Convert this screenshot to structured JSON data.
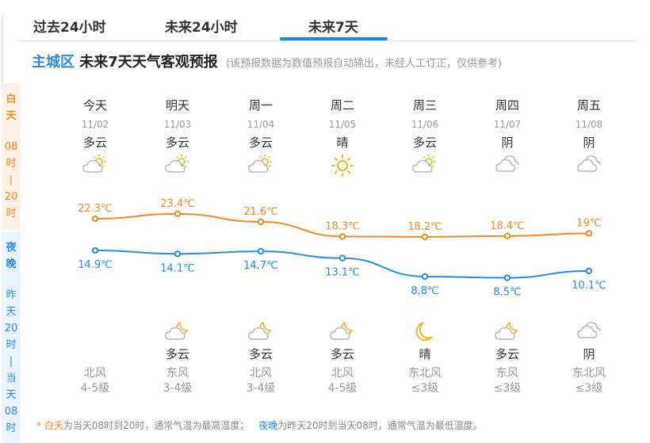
{
  "tabs": [
    {
      "label": "过去24小时",
      "active": false
    },
    {
      "label": "未来24小时",
      "active": false
    },
    {
      "label": "未来7天",
      "active": true
    }
  ],
  "header": {
    "region": "主城区",
    "title": "未来7天天气客观预报",
    "note": "(该预报数据为数值预报自动输出，未经人工订正，仅供参考)"
  },
  "side": {
    "day": {
      "label1": "白",
      "label2": "天",
      "t1": "08",
      "t2": "时",
      "sep": "|",
      "t3": "20",
      "t4": "时"
    },
    "night": {
      "label1": "夜",
      "label2": "晚",
      "t1": "昨",
      "t2": "天",
      "t3": "20",
      "t4": "时",
      "sep": "|",
      "t5": "当",
      "t6": "天",
      "t7": "08",
      "t8": "时"
    }
  },
  "days": [
    {
      "name": "今天",
      "date": "11/02",
      "day_weather": "多云",
      "day_icon": "partly-cloudy-day",
      "high": "22.3℃",
      "low": "14.9℃",
      "night_weather": "",
      "night_icon": "",
      "wind_dir": "北风",
      "wind_level": "4-5级"
    },
    {
      "name": "明天",
      "date": "11/03",
      "day_weather": "多云",
      "day_icon": "partly-cloudy-day",
      "high": "23.4℃",
      "low": "14.1℃",
      "night_weather": "多云",
      "night_icon": "partly-cloudy-night",
      "wind_dir": "东风",
      "wind_level": "3-4级"
    },
    {
      "name": "周一",
      "date": "11/04",
      "day_weather": "多云",
      "day_icon": "partly-cloudy-day",
      "high": "21.6℃",
      "low": "14.7℃",
      "night_weather": "多云",
      "night_icon": "partly-cloudy-night",
      "wind_dir": "北风",
      "wind_level": "3-4级"
    },
    {
      "name": "周二",
      "date": "11/05",
      "day_weather": "晴",
      "day_icon": "sunny",
      "high": "18.3℃",
      "low": "13.1℃",
      "night_weather": "多云",
      "night_icon": "partly-cloudy-night",
      "wind_dir": "北风",
      "wind_level": "4-5级"
    },
    {
      "name": "周三",
      "date": "11/06",
      "day_weather": "多云",
      "day_icon": "partly-cloudy-day",
      "high": "18.2℃",
      "low": "8.8℃",
      "night_weather": "晴",
      "night_icon": "clear-night",
      "wind_dir": "东北风",
      "wind_level": "≤3级"
    },
    {
      "name": "周四",
      "date": "11/07",
      "day_weather": "阴",
      "day_icon": "overcast",
      "high": "18.4℃",
      "low": "8.5℃",
      "night_weather": "多云",
      "night_icon": "partly-cloudy-night",
      "wind_dir": "东风",
      "wind_level": "≤3级"
    },
    {
      "name": "周五",
      "date": "11/08",
      "day_weather": "阴",
      "day_icon": "overcast",
      "high": "19℃",
      "low": "10.1℃",
      "night_weather": "阴",
      "night_icon": "overcast",
      "wind_dir": "东北风",
      "wind_level": "≤3级"
    }
  ],
  "footer": {
    "star": "* ",
    "day_label": "白天",
    "day_text": "为当天08时到20时，通常气温为最高温度；",
    "night_label": "夜晚",
    "night_text": "为昨天20时到当天08时，通常气温为最低温度。"
  },
  "colors": {
    "accent": "#1e88e5",
    "high": "#f08a24",
    "low": "#2b8ae6"
  },
  "chart_data": {
    "type": "line",
    "categories": [
      "11/02",
      "11/03",
      "11/04",
      "11/05",
      "11/06",
      "11/07",
      "11/08"
    ],
    "series": [
      {
        "name": "白天最高温度",
        "values": [
          22.3,
          23.4,
          21.6,
          18.3,
          18.2,
          18.4,
          19.0
        ],
        "color": "#f08a24"
      },
      {
        "name": "夜晚最低温度",
        "values": [
          14.9,
          14.1,
          14.7,
          13.1,
          8.8,
          8.5,
          10.1
        ],
        "color": "#2b8ae6"
      }
    ],
    "unit": "℃",
    "grid": false,
    "legend": "none"
  }
}
